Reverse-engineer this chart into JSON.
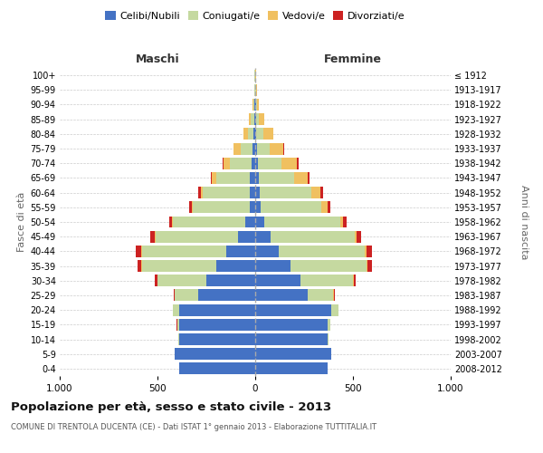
{
  "age_groups": [
    "0-4",
    "5-9",
    "10-14",
    "15-19",
    "20-24",
    "25-29",
    "30-34",
    "35-39",
    "40-44",
    "45-49",
    "50-54",
    "55-59",
    "60-64",
    "65-69",
    "70-74",
    "75-79",
    "80-84",
    "85-89",
    "90-94",
    "95-99",
    "100+"
  ],
  "birth_years": [
    "2008-2012",
    "2003-2007",
    "1998-2002",
    "1993-1997",
    "1988-1992",
    "1983-1987",
    "1978-1982",
    "1973-1977",
    "1968-1972",
    "1963-1967",
    "1958-1962",
    "1953-1957",
    "1948-1952",
    "1943-1947",
    "1938-1942",
    "1933-1937",
    "1928-1932",
    "1923-1927",
    "1918-1922",
    "1913-1917",
    "≤ 1912"
  ],
  "males": {
    "celibi": [
      390,
      410,
      390,
      390,
      390,
      290,
      250,
      200,
      150,
      90,
      50,
      30,
      30,
      30,
      20,
      15,
      8,
      6,
      4,
      2,
      2
    ],
    "coniugati": [
      0,
      1,
      2,
      10,
      30,
      120,
      250,
      380,
      430,
      420,
      370,
      290,
      240,
      170,
      110,
      60,
      30,
      15,
      5,
      2,
      1
    ],
    "vedovi": [
      0,
      0,
      0,
      0,
      0,
      1,
      2,
      3,
      5,
      5,
      5,
      5,
      10,
      20,
      30,
      35,
      20,
      10,
      3,
      1,
      0
    ],
    "divorziati": [
      0,
      0,
      0,
      1,
      2,
      5,
      10,
      20,
      25,
      20,
      15,
      12,
      10,
      8,
      5,
      3,
      2,
      1,
      0,
      0,
      0
    ]
  },
  "females": {
    "nubili": [
      370,
      390,
      370,
      370,
      390,
      270,
      230,
      180,
      120,
      80,
      45,
      30,
      25,
      20,
      15,
      10,
      6,
      5,
      3,
      2,
      1
    ],
    "coniugate": [
      0,
      1,
      3,
      12,
      35,
      130,
      270,
      390,
      440,
      430,
      390,
      310,
      260,
      180,
      120,
      65,
      35,
      15,
      6,
      2,
      1
    ],
    "vedove": [
      0,
      0,
      0,
      0,
      1,
      2,
      3,
      5,
      8,
      10,
      15,
      30,
      50,
      70,
      80,
      70,
      50,
      25,
      10,
      3,
      1
    ],
    "divorziate": [
      0,
      0,
      0,
      1,
      2,
      6,
      12,
      22,
      28,
      22,
      18,
      15,
      12,
      8,
      5,
      3,
      2,
      1,
      0,
      0,
      0
    ]
  },
  "colors": {
    "celibi_nubili": "#4472c4",
    "coniugati": "#c5d9a0",
    "vedovi": "#f0c060",
    "divorziati": "#cc2222"
  },
  "title": "Popolazione per età, sesso e stato civile - 2013",
  "subtitle": "COMUNE DI TRENTOLA DUCENTA (CE) - Dati ISTAT 1° gennaio 2013 - Elaborazione TUTTITALIA.IT",
  "xlabel_left": "Maschi",
  "xlabel_right": "Femmine",
  "ylabel_left": "Fasce di età",
  "ylabel_right": "Anni di nascita",
  "xmax": 1000,
  "legend_labels": [
    "Celibi/Nubili",
    "Coniugati/e",
    "Vedovi/e",
    "Divorziati/e"
  ],
  "bg_color": "#ffffff",
  "grid_color": "#cccccc"
}
